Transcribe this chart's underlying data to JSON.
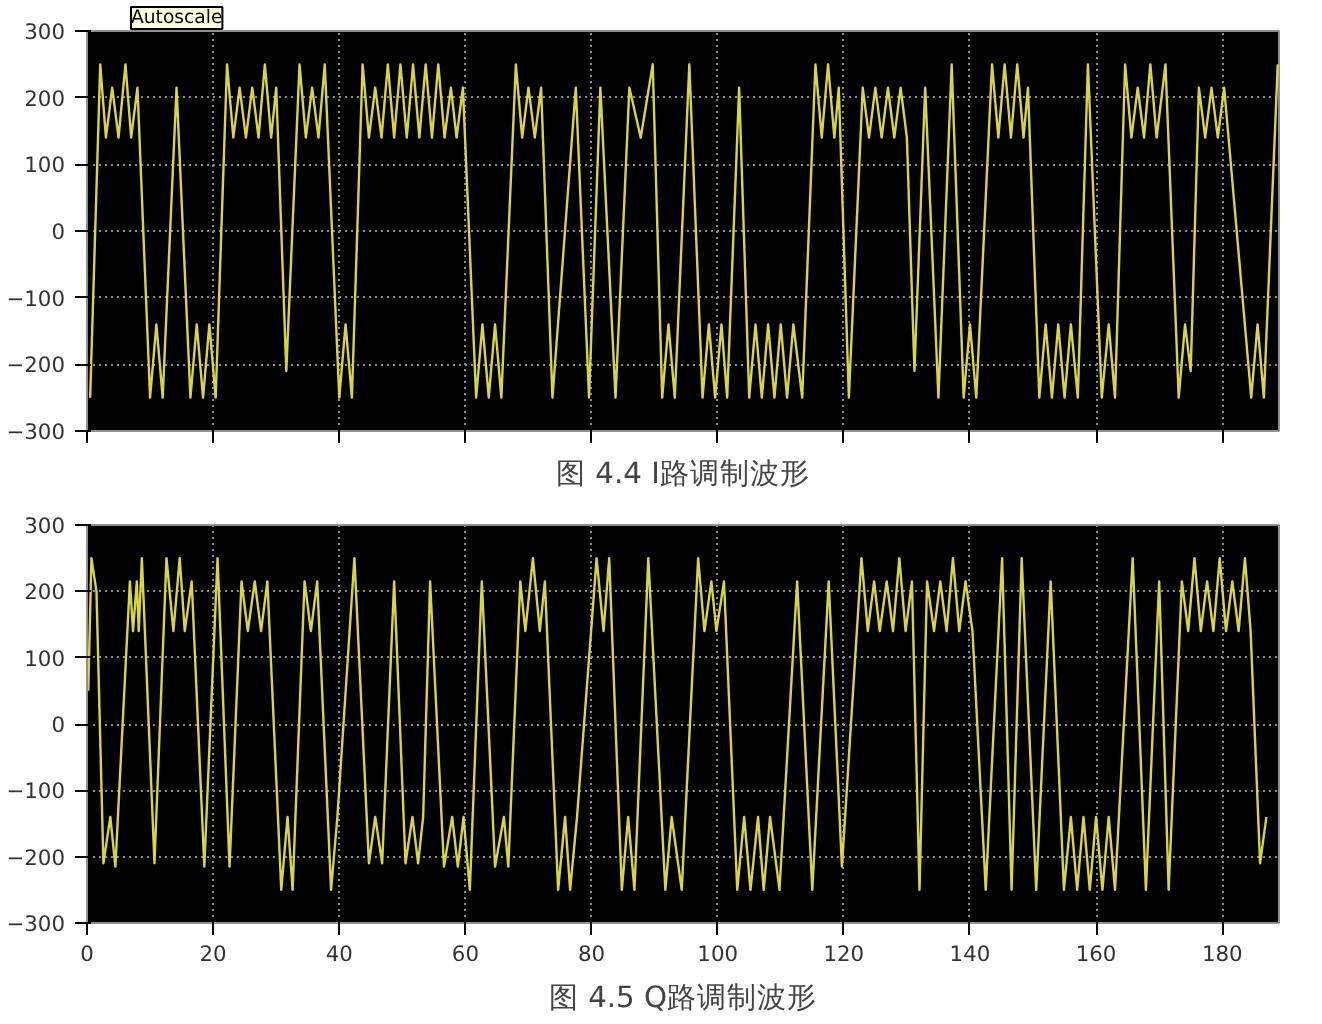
{
  "chart_data": [
    {
      "type": "line",
      "title": "图 4.4 I路调制波形",
      "annotations": [
        "Autoscale"
      ],
      "xlim": [
        0,
        189
      ],
      "ylim": [
        -300,
        300
      ],
      "xticks": [
        {
          "value": 0,
          "label": null
        },
        {
          "value": 20,
          "label": null
        },
        {
          "value": 40,
          "label": null
        },
        {
          "value": 60,
          "label": null
        },
        {
          "value": 80,
          "label": null
        },
        {
          "value": 100,
          "label": null
        },
        {
          "value": 120,
          "label": null
        },
        {
          "value": 140,
          "label": null
        },
        {
          "value": 160,
          "label": null
        },
        {
          "value": 180,
          "label": null
        }
      ],
      "yticks": [
        -300,
        -200,
        -100,
        0,
        100,
        200,
        300
      ],
      "grid": true,
      "tick_labels": "y",
      "marker": "none",
      "line_style": "solid",
      "series": [
        {
          "color": "#d8d44a",
          "x": [
            0.5,
            2.1,
            3.0,
            4.0,
            5.0,
            6.1,
            7.0,
            8.0,
            10.0,
            11.0,
            12.0,
            14.2,
            16.4,
            17.4,
            18.4,
            19.4,
            20.4,
            22.2,
            23.2,
            24.2,
            25.2,
            26.2,
            27.2,
            28.2,
            29.2,
            30.0,
            31.6,
            33.7,
            34.7,
            35.7,
            36.7,
            37.7,
            40.0,
            41.0,
            42.0,
            43.7,
            44.7,
            45.7,
            46.7,
            47.7,
            48.7,
            49.7,
            50.7,
            51.7,
            52.7,
            53.7,
            54.7,
            55.7,
            56.7,
            57.7,
            58.6,
            59.6,
            61.7,
            62.7,
            63.7,
            64.7,
            65.7,
            68.0,
            69.0,
            70.0,
            71.0,
            72.0,
            73.8,
            77.5,
            79.6,
            81.4,
            83.8,
            86.0,
            87.8,
            89.7,
            91.2,
            92.2,
            93.2,
            95.5,
            97.6,
            98.6,
            99.6,
            100.6,
            101.5,
            103.4,
            105.0,
            106.0,
            107.0,
            108.0,
            109.0,
            110.0,
            111.0,
            112.0,
            113.4,
            115.5,
            116.5,
            117.5,
            118.5,
            119.2,
            120.8,
            123.0,
            124.0,
            125.0,
            126.0,
            127.0,
            128.0,
            129.0,
            130.0,
            131.2,
            132.9,
            135.0,
            137.1,
            139.0,
            140.0,
            141.0,
            143.5,
            144.5,
            145.5,
            146.5,
            147.5,
            148.5,
            149.2,
            151.0,
            152.0,
            153.0,
            154.0,
            155.0,
            156.0,
            157.1,
            158.7,
            160.9,
            162.0,
            163.0,
            164.6,
            165.6,
            166.6,
            167.6,
            168.6,
            169.6,
            171.0,
            173.1,
            174.1,
            175.0,
            176.3,
            177.3,
            178.3,
            179.3,
            180.3,
            181.0,
            184.6,
            185.6,
            186.6,
            188.8
          ],
          "values": [
            -250,
            250,
            140,
            215,
            140,
            250,
            140,
            215,
            -250,
            -140,
            -250,
            215,
            -250,
            -140,
            -250,
            -140,
            -250,
            250,
            140,
            215,
            140,
            215,
            140,
            250,
            140,
            215,
            -210,
            250,
            140,
            215,
            140,
            250,
            -250,
            -140,
            -250,
            250,
            140,
            215,
            140,
            250,
            140,
            250,
            140,
            250,
            140,
            250,
            140,
            250,
            140,
            215,
            140,
            215,
            -250,
            -140,
            -250,
            -140,
            -250,
            250,
            140,
            215,
            140,
            215,
            -250,
            215,
            -250,
            215,
            -250,
            215,
            140,
            250,
            -250,
            -140,
            -250,
            250,
            -250,
            -140,
            -250,
            -140,
            -250,
            215,
            -250,
            -140,
            -250,
            -140,
            -250,
            -140,
            -250,
            -140,
            -250,
            250,
            140,
            250,
            140,
            215,
            -250,
            215,
            140,
            215,
            140,
            215,
            140,
            215,
            140,
            -210,
            215,
            -250,
            250,
            -250,
            -140,
            -250,
            250,
            140,
            250,
            140,
            250,
            140,
            215,
            -250,
            -140,
            -250,
            -140,
            -250,
            -140,
            -250,
            250,
            -250,
            -140,
            -250,
            250,
            140,
            215,
            140,
            250,
            140,
            250,
            -250,
            -140,
            -210,
            215,
            140,
            215,
            140,
            215,
            140,
            -250,
            -140,
            -250,
            250
          ]
        }
      ]
    },
    {
      "type": "line",
      "title": "图 4.5 Q路调制波形",
      "xlim": [
        0,
        189
      ],
      "ylim": [
        -300,
        300
      ],
      "xticks": [
        0,
        20,
        40,
        60,
        80,
        100,
        120,
        140,
        160,
        180
      ],
      "yticks": [
        -300,
        -200,
        -100,
        0,
        100,
        200,
        300
      ],
      "grid": true,
      "marker": "none",
      "line_style": "solid",
      "series": [
        {
          "color": "#d8d44a",
          "x": [
            0.2,
            0.7,
            1.5,
            2.6,
            3.7,
            4.5,
            6.8,
            7.3,
            7.9,
            8.2,
            8.7,
            10.7,
            12.6,
            13.7,
            14.7,
            15.5,
            16.6,
            18.6,
            20.7,
            22.6,
            24.5,
            25.5,
            26.6,
            27.6,
            28.6,
            30.8,
            31.8,
            32.6,
            34.5,
            35.5,
            36.5,
            38.7,
            39.7,
            42.4,
            44.7,
            45.7,
            46.8,
            48.7,
            50.5,
            51.6,
            52.5,
            53.3,
            54.4,
            56.6,
            57.9,
            58.8,
            59.7,
            60.7,
            62.6,
            64.7,
            66.1,
            66.8,
            68.7,
            69.5,
            70.7,
            71.8,
            72.6,
            74.7,
            75.8,
            76.6,
            77.7,
            80.8,
            81.9,
            82.8,
            84.8,
            85.8,
            86.8,
            89.0,
            91.7,
            92.7,
            94.3,
            96.9,
            97.9,
            99.0,
            99.8,
            101.0,
            103.1,
            104.2,
            105.2,
            106.4,
            107.3,
            108.3,
            109.8,
            112.6,
            115.0,
            117.6,
            119.7,
            122.8,
            123.8,
            124.8,
            125.7,
            126.8,
            127.8,
            128.8,
            129.8,
            130.8,
            132.0,
            133.2,
            134.3,
            135.3,
            136.3,
            137.3,
            138.3,
            139.3,
            140.4,
            142.5,
            145.1,
            146.6,
            148.2,
            150.5,
            152.8,
            154.9,
            156.0,
            157.0,
            158.0,
            159.0,
            160.0,
            161.0,
            162.0,
            163.0,
            165.8,
            167.9,
            170.0,
            171.5,
            173.6,
            174.6,
            175.6,
            176.6,
            177.6,
            178.6,
            179.6,
            180.6,
            181.6,
            182.6,
            183.6,
            184.5,
            186.0,
            187.0
          ],
          "values": [
            50,
            250,
            200,
            -210,
            -140,
            -215,
            215,
            140,
            215,
            140,
            250,
            -210,
            250,
            140,
            250,
            140,
            215,
            -215,
            250,
            -215,
            215,
            140,
            215,
            140,
            215,
            -250,
            -140,
            -250,
            215,
            140,
            215,
            -250,
            -140,
            250,
            -210,
            -140,
            -210,
            215,
            -210,
            -140,
            -210,
            -140,
            215,
            -215,
            -140,
            -215,
            -140,
            -250,
            215,
            -215,
            -140,
            -215,
            215,
            140,
            250,
            140,
            215,
            -250,
            -140,
            -250,
            -140,
            250,
            140,
            250,
            -250,
            -140,
            -250,
            250,
            -250,
            -140,
            -250,
            250,
            140,
            215,
            140,
            215,
            -250,
            -140,
            -250,
            -140,
            -250,
            -140,
            -250,
            215,
            -250,
            215,
            -215,
            250,
            140,
            215,
            140,
            215,
            140,
            250,
            140,
            215,
            -250,
            215,
            140,
            215,
            140,
            250,
            140,
            215,
            140,
            -250,
            250,
            -250,
            250,
            -250,
            215,
            -250,
            -140,
            -250,
            -140,
            -250,
            -140,
            -250,
            -140,
            -250,
            250,
            -250,
            215,
            -250,
            215,
            140,
            250,
            140,
            215,
            140,
            250,
            140,
            215,
            140,
            250,
            140,
            -210,
            -140
          ]
        }
      ]
    }
  ]
}
